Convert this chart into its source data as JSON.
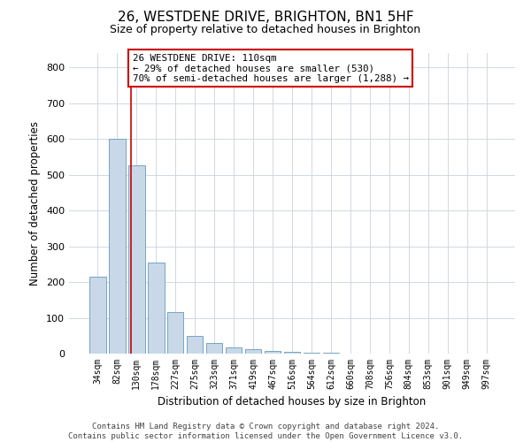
{
  "title_line1": "26, WESTDENE DRIVE, BRIGHTON, BN1 5HF",
  "title_line2": "Size of property relative to detached houses in Brighton",
  "xlabel": "Distribution of detached houses by size in Brighton",
  "ylabel": "Number of detached properties",
  "bar_labels": [
    "34sqm",
    "82sqm",
    "130sqm",
    "178sqm",
    "227sqm",
    "275sqm",
    "323sqm",
    "371sqm",
    "419sqm",
    "467sqm",
    "516sqm",
    "564sqm",
    "612sqm",
    "660sqm",
    "708sqm",
    "756sqm",
    "804sqm",
    "853sqm",
    "901sqm",
    "949sqm",
    "997sqm"
  ],
  "bar_values": [
    215,
    600,
    525,
    255,
    115,
    50,
    30,
    18,
    13,
    8,
    5,
    3,
    2,
    1,
    1,
    1,
    0,
    0,
    0,
    0,
    0
  ],
  "bar_color": "#c8d8e8",
  "bar_edge_color": "#6699bb",
  "grid_color": "#d0d8e0",
  "annotation_text": "26 WESTDENE DRIVE: 110sqm\n← 29% of detached houses are smaller (530)\n70% of semi-detached houses are larger (1,288) →",
  "red_line_x": 1.72,
  "ylim": [
    0,
    840
  ],
  "yticks": [
    0,
    100,
    200,
    300,
    400,
    500,
    600,
    700,
    800
  ],
  "annotation_box_color": "#ffffff",
  "annotation_box_edge": "#cc0000",
  "footer_line1": "Contains HM Land Registry data © Crown copyright and database right 2024.",
  "footer_line2": "Contains public sector information licensed under the Open Government Licence v3.0.",
  "background_color": "#ffffff",
  "title1_fontsize": 11,
  "title2_fontsize": 9
}
